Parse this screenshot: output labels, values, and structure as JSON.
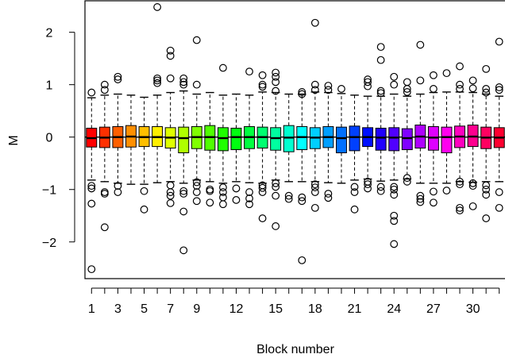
{
  "chart_data": {
    "type": "boxplot",
    "title": "",
    "xlabel": "Block number",
    "ylabel": "M",
    "ylim": [
      -2.7,
      2.6
    ],
    "xlim": [
      0.5,
      32.5
    ],
    "y_ticks": [
      -2,
      -1,
      0,
      1,
      2
    ],
    "x_ticks": [
      1,
      3,
      5,
      7,
      9,
      12,
      15,
      18,
      21,
      24,
      27,
      30
    ],
    "reference_line": 0,
    "grid": false,
    "whisker_style": "dashed",
    "color_palette": "rainbow",
    "categories": [
      1,
      2,
      3,
      4,
      5,
      6,
      7,
      8,
      9,
      10,
      11,
      12,
      13,
      14,
      15,
      16,
      17,
      18,
      19,
      20,
      21,
      22,
      23,
      24,
      25,
      26,
      27,
      28,
      29,
      30,
      31,
      32
    ],
    "boxes": [
      {
        "block": 1,
        "color": "#FF0000",
        "whisker_low": -0.82,
        "q1": -0.19,
        "median": -0.02,
        "q3": 0.17,
        "whisker_high": 0.75,
        "outliers": [
          0.85,
          -0.93,
          -0.98,
          -1.27,
          -2.52
        ]
      },
      {
        "block": 2,
        "color": "#FF3000",
        "whisker_low": -0.85,
        "q1": -0.2,
        "median": -0.01,
        "q3": 0.19,
        "whisker_high": 0.8,
        "outliers": [
          0.9,
          1.0,
          -1.05,
          -1.08,
          -1.72
        ]
      },
      {
        "block": 3,
        "color": "#FF6000",
        "whisker_low": -0.88,
        "q1": -0.2,
        "median": 0.0,
        "q3": 0.2,
        "whisker_high": 0.82,
        "outliers": [
          1.1,
          1.15,
          -0.93,
          -1.05
        ]
      },
      {
        "block": 4,
        "color": "#FF8F00",
        "whisker_low": -0.9,
        "q1": -0.19,
        "median": 0.01,
        "q3": 0.22,
        "whisker_high": 0.8,
        "outliers": []
      },
      {
        "block": 5,
        "color": "#FFBF00",
        "whisker_low": -0.9,
        "q1": -0.18,
        "median": 0.0,
        "q3": 0.2,
        "whisker_high": 0.76,
        "outliers": [
          -1.03,
          -1.38
        ]
      },
      {
        "block": 6,
        "color": "#FFEF00",
        "whisker_low": -0.87,
        "q1": -0.18,
        "median": 0.0,
        "q3": 0.2,
        "whisker_high": 0.8,
        "outliers": [
          1.03,
          1.12,
          1.08,
          2.48
        ]
      },
      {
        "block": 7,
        "color": "#DFFF00",
        "whisker_low": -0.85,
        "q1": -0.21,
        "median": -0.01,
        "q3": 0.18,
        "whisker_high": 0.85,
        "outliers": [
          1.12,
          1.55,
          1.65,
          -0.92,
          -1.05,
          -1.12,
          -1.26
        ]
      },
      {
        "block": 8,
        "color": "#AFFF00",
        "whisker_low": -0.88,
        "q1": -0.3,
        "median": -0.02,
        "q3": 0.19,
        "whisker_high": 0.88,
        "outliers": [
          1.05,
          1.12,
          1.0,
          -1.03,
          -1.08,
          -1.42,
          -2.16
        ]
      },
      {
        "block": 9,
        "color": "#80FF00",
        "whisker_low": -0.82,
        "q1": -0.22,
        "median": 0.0,
        "q3": 0.2,
        "whisker_high": 0.82,
        "outliers": [
          1.85,
          1.0,
          -0.86,
          -0.93,
          -1.05,
          -1.22
        ]
      },
      {
        "block": 10,
        "color": "#50FF00",
        "whisker_low": -0.85,
        "q1": -0.25,
        "median": 0.0,
        "q3": 0.22,
        "whisker_high": 0.85,
        "outliers": [
          -1.0,
          -1.03,
          -1.25
        ]
      },
      {
        "block": 11,
        "color": "#20FF00",
        "whisker_low": -0.88,
        "q1": -0.26,
        "median": -0.02,
        "q3": 0.18,
        "whisker_high": 0.8,
        "outliers": [
          1.32,
          -0.96,
          -1.05,
          -1.15,
          -1.28
        ]
      },
      {
        "block": 12,
        "color": "#00FF10",
        "whisker_low": -0.85,
        "q1": -0.24,
        "median": 0.0,
        "q3": 0.17,
        "whisker_high": 0.82,
        "outliers": [
          -0.98,
          -1.2
        ]
      },
      {
        "block": 13,
        "color": "#00FF40",
        "whisker_low": -0.87,
        "q1": -0.22,
        "median": 0.0,
        "q3": 0.2,
        "whisker_high": 0.8,
        "outliers": [
          1.25,
          -1.05,
          -1.17,
          -1.28
        ]
      },
      {
        "block": 14,
        "color": "#00FF70",
        "whisker_low": -0.88,
        "q1": -0.21,
        "median": 0.0,
        "q3": 0.19,
        "whisker_high": 0.86,
        "outliers": [
          1.18,
          1.0,
          0.96,
          -0.92,
          -0.97,
          -1.05,
          -1.55
        ]
      },
      {
        "block": 15,
        "color": "#00FFA0",
        "whisker_low": -0.82,
        "q1": -0.25,
        "median": -0.02,
        "q3": 0.18,
        "whisker_high": 0.85,
        "outliers": [
          1.23,
          1.15,
          1.05,
          0.88,
          -0.88,
          -0.95,
          -1.12,
          -1.7
        ]
      },
      {
        "block": 16,
        "color": "#00FFCF",
        "whisker_low": -0.85,
        "q1": -0.28,
        "median": -0.01,
        "q3": 0.22,
        "whisker_high": 0.82,
        "outliers": [
          -1.12,
          -1.18
        ]
      },
      {
        "block": 17,
        "color": "#00FFFF",
        "whisker_low": -0.85,
        "q1": -0.24,
        "median": 0.0,
        "q3": 0.2,
        "whisker_high": 0.82,
        "outliers": [
          0.86,
          0.82,
          -1.15,
          -1.22,
          -2.35
        ]
      },
      {
        "block": 18,
        "color": "#00CFFF",
        "whisker_low": -0.85,
        "q1": -0.22,
        "median": -0.01,
        "q3": 0.18,
        "whisker_high": 0.86,
        "outliers": [
          2.18,
          1.0,
          0.9,
          -0.9,
          -0.96,
          -1.05,
          -1.35
        ]
      },
      {
        "block": 19,
        "color": "#009FFF",
        "whisker_low": -0.87,
        "q1": -0.2,
        "median": 0.0,
        "q3": 0.2,
        "whisker_high": 0.85,
        "outliers": [
          0.98,
          0.9,
          -1.08,
          -1.16
        ]
      },
      {
        "block": 20,
        "color": "#0070FF",
        "whisker_low": -0.88,
        "q1": -0.3,
        "median": -0.02,
        "q3": 0.19,
        "whisker_high": 0.83,
        "outliers": [
          0.92
        ]
      },
      {
        "block": 21,
        "color": "#0040FF",
        "whisker_low": -0.82,
        "q1": -0.26,
        "median": 0.0,
        "q3": 0.21,
        "whisker_high": 0.8,
        "outliers": [
          -0.95,
          -1.05,
          -1.38
        ]
      },
      {
        "block": 22,
        "color": "#0010FF",
        "whisker_low": -0.8,
        "q1": -0.18,
        "median": 0.0,
        "q3": 0.18,
        "whisker_high": 0.78,
        "outliers": [
          1.1,
          1.05,
          0.97,
          -0.85,
          -0.9,
          -0.98
        ]
      },
      {
        "block": 23,
        "color": "#2000FF",
        "whisker_low": -0.84,
        "q1": -0.25,
        "median": -0.01,
        "q3": 0.17,
        "whisker_high": 0.78,
        "outliers": [
          1.72,
          1.47,
          0.88,
          0.84,
          -0.95,
          -1.03
        ]
      },
      {
        "block": 24,
        "color": "#5000FF",
        "whisker_low": -0.82,
        "q1": -0.26,
        "median": -0.01,
        "q3": 0.18,
        "whisker_high": 0.82,
        "outliers": [
          1.15,
          1.0,
          -0.95,
          -1.0,
          -1.1,
          -1.5,
          -1.6,
          -2.04
        ]
      },
      {
        "block": 25,
        "color": "#8000FF",
        "whisker_low": -0.8,
        "q1": -0.24,
        "median": -0.02,
        "q3": 0.16,
        "whisker_high": 0.78,
        "outliers": [
          1.05,
          0.92,
          0.86,
          -0.78,
          -0.85
        ]
      },
      {
        "block": 26,
        "color": "#AF00FF",
        "whisker_low": -0.88,
        "q1": -0.21,
        "median": 0.01,
        "q3": 0.23,
        "whisker_high": 0.82,
        "outliers": [
          1.76,
          1.08,
          -1.12,
          -1.18,
          -1.24
        ]
      },
      {
        "block": 27,
        "color": "#DF00FF",
        "whisker_low": -0.88,
        "q1": -0.25,
        "median": -0.01,
        "q3": 0.2,
        "whisker_high": 0.85,
        "outliers": [
          1.18,
          0.92,
          -1.04,
          -1.25
        ]
      },
      {
        "block": 28,
        "color": "#FF00EF",
        "whisker_low": -0.88,
        "q1": -0.3,
        "median": 0.0,
        "q3": 0.19,
        "whisker_high": 0.86,
        "outliers": [
          1.22,
          -1.02
        ]
      },
      {
        "block": 29,
        "color": "#FF00BF",
        "whisker_low": -0.85,
        "q1": -0.2,
        "median": 0.01,
        "q3": 0.21,
        "whisker_high": 0.86,
        "outliers": [
          1.35,
          1.0,
          0.92,
          -0.85,
          -0.9,
          -1.35,
          -1.4
        ]
      },
      {
        "block": 30,
        "color": "#FF008F",
        "whisker_low": -0.86,
        "q1": -0.18,
        "median": 0.01,
        "q3": 0.23,
        "whisker_high": 0.85,
        "outliers": [
          1.08,
          0.93,
          -0.88,
          -0.93,
          -1.32
        ]
      },
      {
        "block": 31,
        "color": "#FF0060",
        "whisker_low": -0.85,
        "q1": -0.22,
        "median": -0.01,
        "q3": 0.19,
        "whisker_high": 0.82,
        "outliers": [
          1.3,
          0.92,
          0.85,
          -0.92,
          -1.0,
          -1.1,
          -1.55
        ]
      },
      {
        "block": 32,
        "color": "#FF0030",
        "whisker_low": -0.85,
        "q1": -0.2,
        "median": -0.01,
        "q3": 0.18,
        "whisker_high": 0.78,
        "outliers": [
          1.82,
          0.95,
          0.9,
          -1.05,
          -1.35
        ]
      }
    ]
  }
}
